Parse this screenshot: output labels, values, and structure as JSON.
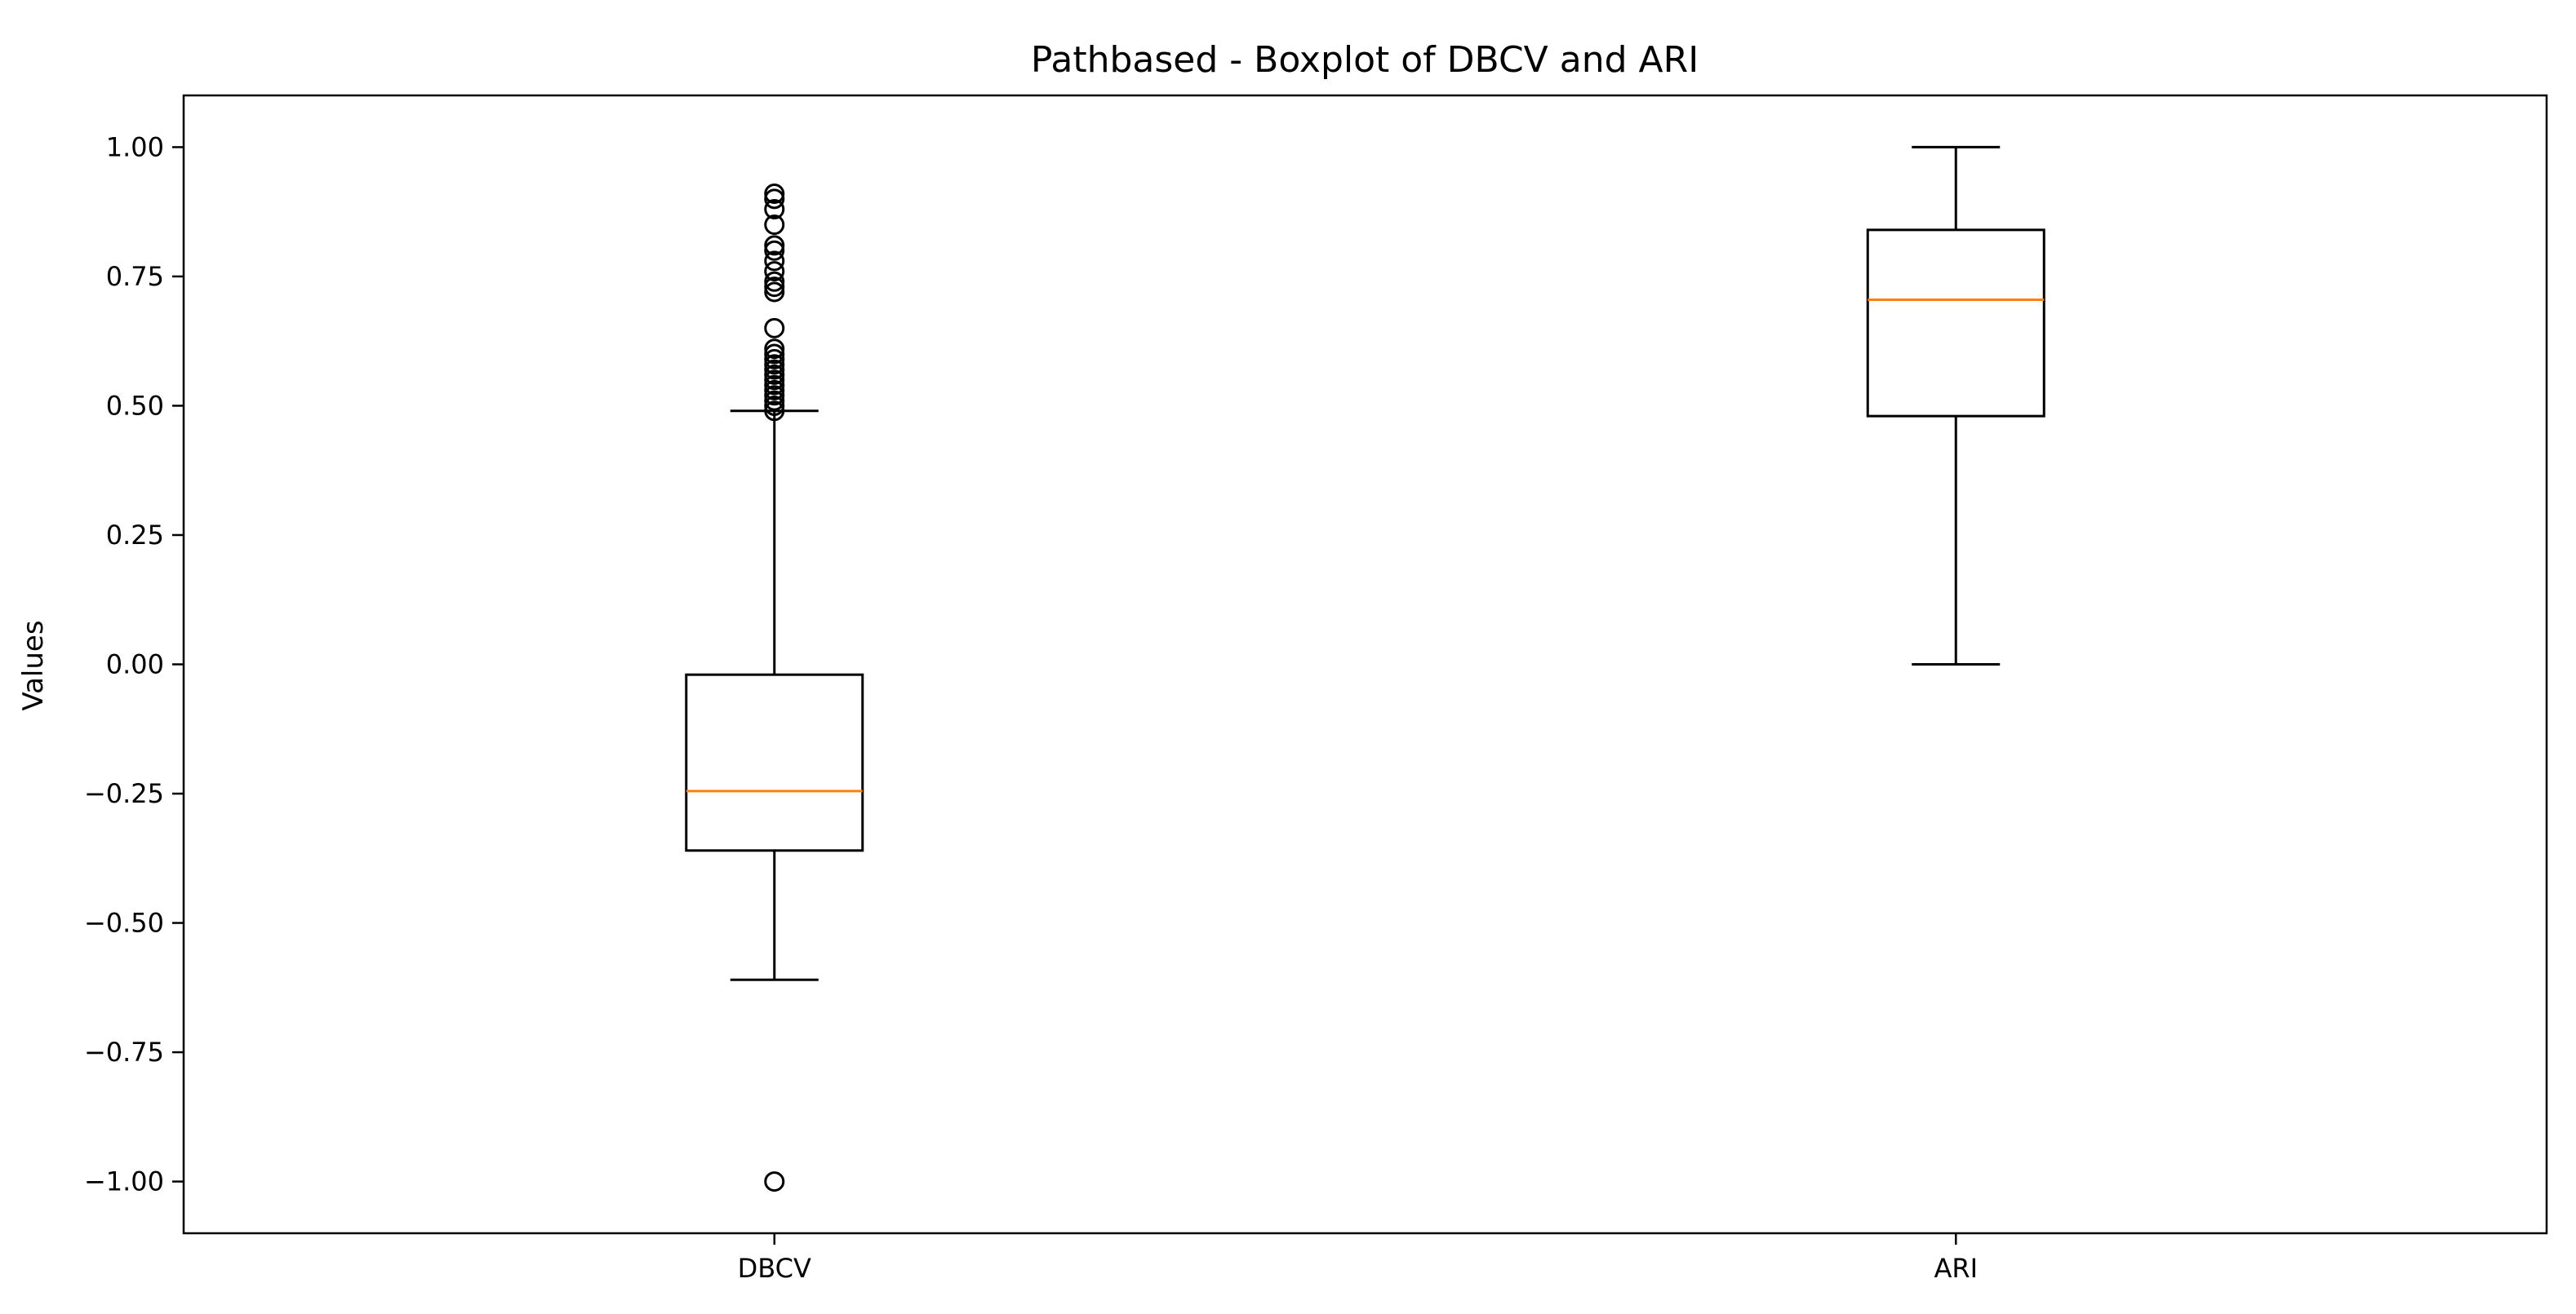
{
  "chart_data": {
    "type": "boxplot",
    "title": "Pathbased - Boxplot of DBCV and ARI",
    "xlabel": "",
    "ylabel": "Values",
    "ylim": [
      -1.1,
      1.1
    ],
    "yticks": [
      1.0,
      0.75,
      0.5,
      0.25,
      0.0,
      -0.25,
      -0.5,
      -0.75,
      -1.0
    ],
    "ytick_labels": [
      "1.00",
      "0.75",
      "0.50",
      "0.25",
      "0.00",
      "−0.25",
      "−0.50",
      "−0.75",
      "−1.00"
    ],
    "categories": [
      "DBCV",
      "ARI"
    ],
    "boxes": [
      {
        "label": "DBCV",
        "whisker_low": -0.61,
        "q1": -0.36,
        "median": -0.245,
        "q3": -0.02,
        "whisker_high": 0.49,
        "outliers": [
          -1.0,
          0.49,
          0.5,
          0.51,
          0.52,
          0.53,
          0.54,
          0.55,
          0.56,
          0.57,
          0.58,
          0.59,
          0.6,
          0.61,
          0.65,
          0.72,
          0.73,
          0.74,
          0.76,
          0.78,
          0.8,
          0.81,
          0.85,
          0.88,
          0.9,
          0.91
        ]
      },
      {
        "label": "ARI",
        "whisker_low": 0.0,
        "q1": 0.48,
        "median": 0.705,
        "q3": 0.84,
        "whisker_high": 1.0,
        "outliers": []
      }
    ],
    "grid": false,
    "colors": {
      "box": "#000000",
      "median": "#ff7f0e",
      "outlier": "#000000"
    }
  }
}
